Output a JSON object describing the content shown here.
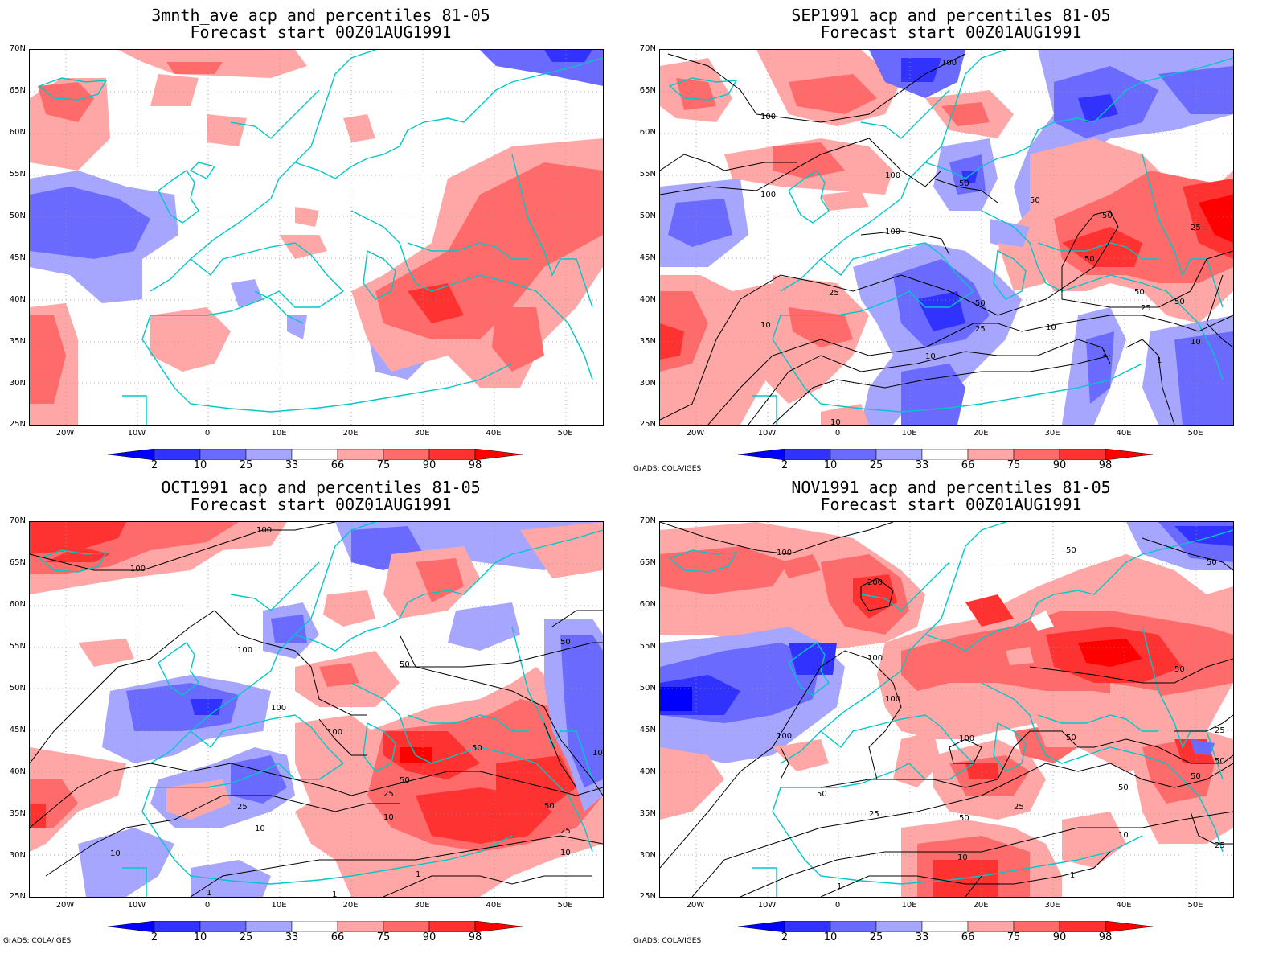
{
  "legend": {
    "bins": [
      "2",
      "10",
      "25",
      "33",
      "66",
      "75",
      "90",
      "98"
    ],
    "colors": {
      "c_lt2": "#0000ff",
      "c_2_10": "#3232ff",
      "c_10_25": "#6a6aff",
      "c_25_33": "#a6a6ff",
      "c_33_66": "#ffffff",
      "c_66_75": "#ffa6a6",
      "c_75_90": "#ff6a6a",
      "c_90_98": "#ff3232",
      "c_gt98": "#ff0000"
    },
    "coast_color": "#00c8c8",
    "contour_color": "#000000"
  },
  "credit": "GrADS: COLA/IGES",
  "axes": {
    "lat_ticks": [
      "70N",
      "65N",
      "60N",
      "55N",
      "50N",
      "45N",
      "40N",
      "35N",
      "30N",
      "25N"
    ],
    "lon_ticks": [
      "20W",
      "10W",
      "0",
      "10E",
      "20E",
      "30E",
      "40E",
      "50E"
    ]
  },
  "panels": [
    {
      "id": "p1",
      "title_line1": "3mnth_ave acp and percentiles 81-05",
      "title_line2": "Forecast start 00Z01AUG1991",
      "show_credit": false,
      "contour_labels": []
    },
    {
      "id": "p2",
      "title_line1": "SEP1991 acp and percentiles 81-05",
      "title_line2": "Forecast start 00Z01AUG1991",
      "show_credit": true,
      "contour_labels": [
        "100",
        "100",
        "100",
        "100",
        "100",
        "50",
        "50",
        "50",
        "50",
        "50",
        "50",
        "50",
        "25",
        "25",
        "25",
        "25",
        "10",
        "10",
        "10",
        "10",
        "10",
        "1",
        "1"
      ]
    },
    {
      "id": "p3",
      "title_line1": "OCT1991 acp and percentiles 81-05",
      "title_line2": "Forecast start 00Z01AUG1991",
      "show_credit": true,
      "contour_labels": [
        "100",
        "100",
        "100",
        "100",
        "100",
        "50",
        "50",
        "50",
        "50",
        "50",
        "25",
        "25",
        "25",
        "10",
        "10",
        "10",
        "10",
        "10",
        "1",
        "1",
        "1"
      ]
    },
    {
      "id": "p4",
      "title_line1": "NOV1991 acp and percentiles 81-05",
      "title_line2": "Forecast start 00Z01AUG1991",
      "show_credit": true,
      "contour_labels": [
        "100",
        "100",
        "100",
        "100",
        "200",
        "100",
        "50",
        "50",
        "50",
        "50",
        "50",
        "50",
        "50",
        "50",
        "50",
        "25",
        "25",
        "25",
        "25",
        "10",
        "10",
        "1",
        "1"
      ]
    }
  ]
}
